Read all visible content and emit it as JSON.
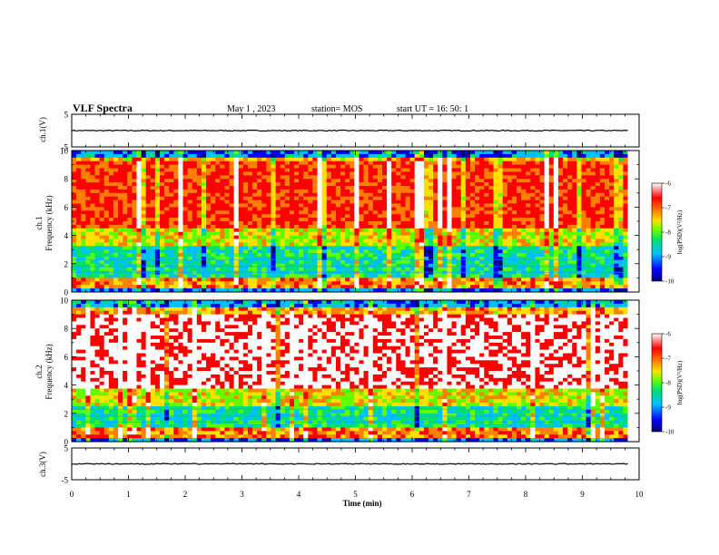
{
  "header": {
    "title": "VLF Spectra",
    "date": "May 1 , 2023",
    "station": "station= MOS",
    "start": "start UT = 16: 50: 1"
  },
  "chart_data": {
    "type": "heatmap",
    "xlabel": "Time (min)",
    "xlim": [
      0,
      10
    ],
    "xticks": [
      "0",
      "1",
      "2",
      "3",
      "4",
      "5",
      "6",
      "7",
      "8",
      "9",
      "10"
    ],
    "data_end_min": 9.8,
    "panels": [
      {
        "id": "ch1-voltage",
        "type": "line",
        "ylabel": "ch.1(V)",
        "ylim": [
          -5,
          5
        ],
        "yticks": [
          "5",
          "-5"
        ],
        "baseline": 0
      },
      {
        "id": "ch1-spectrogram",
        "type": "heatmap",
        "ylabel_top": "ch.1",
        "ylabel": "Frequency (kHz)",
        "ylim": [
          0,
          10
        ],
        "yticks": [
          "10",
          "8",
          "6",
          "4",
          "2",
          "0"
        ],
        "strong_band_khz": [
          4.5,
          9.2
        ],
        "colorbar": {
          "label": "log(PSD)(V²/Hz)",
          "range": [
            -10,
            -6
          ],
          "ticks": [
            "-6",
            "-7",
            "-8",
            "-9",
            "-10"
          ]
        }
      },
      {
        "id": "ch2-spectrogram",
        "type": "heatmap",
        "ylabel_top": "ch.2",
        "ylabel": "Frequency (kHz)",
        "ylim": [
          0,
          10
        ],
        "yticks": [
          "10",
          "8",
          "6",
          "4",
          "2",
          "0"
        ],
        "strong_band_khz": [
          3.8,
          9.0
        ],
        "colorbar": {
          "label": "log(PSD)(V²/Hz)",
          "range": [
            -10,
            -6
          ],
          "ticks": [
            "-6",
            "-7",
            "-8",
            "-9",
            "-10"
          ]
        }
      },
      {
        "id": "ch3-voltage",
        "type": "line",
        "ylabel": "ch.3(V)",
        "ylim": [
          -5,
          5
        ],
        "yticks": [
          "5",
          "-5"
        ],
        "baseline": 0
      }
    ],
    "colors": {
      "colormap": [
        "#000080",
        "#0000ff",
        "#00c0ff",
        "#00e070",
        "#60ff00",
        "#ffe000",
        "#ff8000",
        "#ff0000",
        "#ffffff"
      ]
    }
  }
}
